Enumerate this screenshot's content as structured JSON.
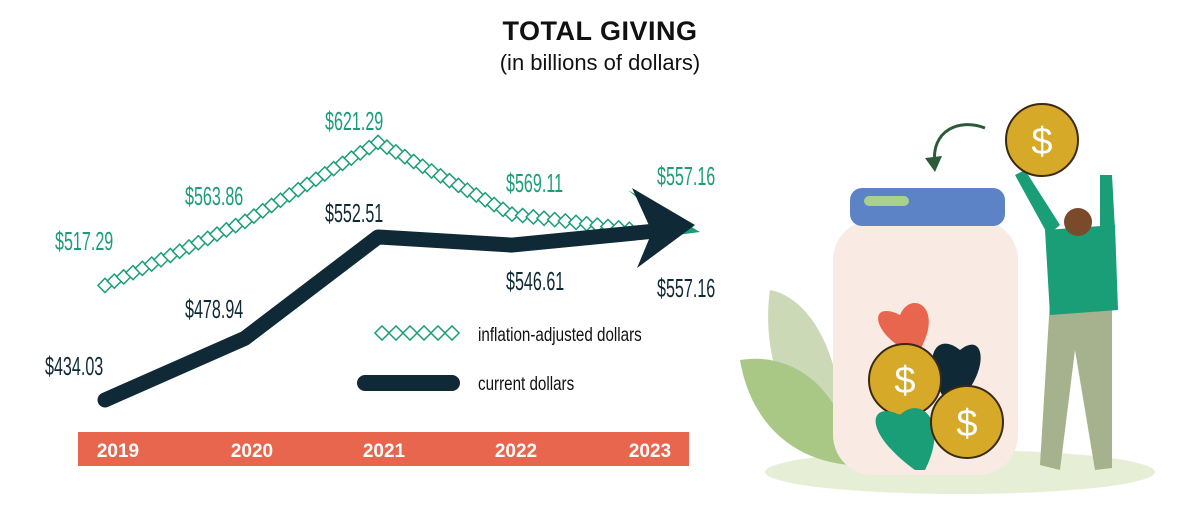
{
  "chart_data": {
    "type": "line",
    "title": "TOTAL GIVING",
    "subtitle": "(in billions of dollars)",
    "categories": [
      "2019",
      "2020",
      "2021",
      "2022",
      "2023"
    ],
    "series": [
      {
        "name": "inflation-adjusted dollars",
        "values": [
          517.29,
          563.86,
          621.29,
          569.11,
          557.16
        ],
        "labels": [
          "$517.29",
          "$563.86",
          "$621.29",
          "$569.11",
          "$557.16"
        ],
        "color": "#1a9e78",
        "style": "diamond-chain"
      },
      {
        "name": "current dollars",
        "values": [
          434.03,
          478.94,
          552.51,
          546.61,
          557.16
        ],
        "labels": [
          "$434.03",
          "$478.94",
          "$552.51",
          "$546.61",
          "$557.16"
        ],
        "color": "#0f2a36",
        "style": "thick-arrow"
      }
    ],
    "legend_placement": "center-right",
    "axis_bar_color": "#e8654e",
    "grid": false
  },
  "illustration": "donation jar with coins and hearts, person holding coin"
}
